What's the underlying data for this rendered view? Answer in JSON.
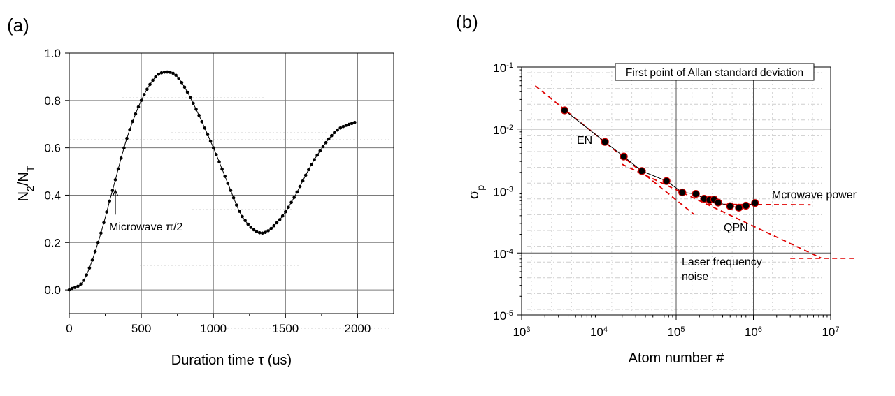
{
  "panel_a": {
    "label": "(a)"
  },
  "panel_b": {
    "label": "(b)"
  },
  "chart_data": [
    {
      "type": "scatter",
      "panel": "(a)",
      "title": "",
      "xlabel": "Duration time τ (us)",
      "ylabel": "N2/NT",
      "xlim": [
        0,
        2250
      ],
      "ylim": [
        -0.1,
        1.0
      ],
      "xticks": [
        0,
        500,
        1000,
        1500,
        2000
      ],
      "yticks": [
        0.0,
        0.2,
        0.4,
        0.6,
        0.8,
        1.0
      ],
      "xtick_labels": [
        "0",
        "500",
        "1000",
        "1500",
        "2000"
      ],
      "ytick_labels": [
        "0.0",
        "0.2",
        "0.4",
        "0.6",
        "0.8",
        "1.0"
      ],
      "grid": true,
      "marker_color": "#000000",
      "series": [
        {
          "points": [
            {
              "x": 0,
              "y": 0.0
            },
            {
              "x": 100,
              "y": 0.04
            },
            {
              "x": 200,
              "y": 0.2
            },
            {
              "x": 300,
              "y": 0.42
            },
            {
              "x": 400,
              "y": 0.64
            },
            {
              "x": 500,
              "y": 0.8
            },
            {
              "x": 600,
              "y": 0.9
            },
            {
              "x": 680,
              "y": 0.92
            },
            {
              "x": 750,
              "y": 0.9
            },
            {
              "x": 850,
              "y": 0.8
            },
            {
              "x": 1000,
              "y": 0.6
            },
            {
              "x": 1100,
              "y": 0.45
            },
            {
              "x": 1200,
              "y": 0.31
            },
            {
              "x": 1330,
              "y": 0.24
            },
            {
              "x": 1450,
              "y": 0.29
            },
            {
              "x": 1550,
              "y": 0.38
            },
            {
              "x": 1700,
              "y": 0.55
            },
            {
              "x": 1850,
              "y": 0.67
            },
            {
              "x": 1990,
              "y": 0.71
            }
          ]
        }
      ],
      "annotations": [
        {
          "text": "Microwave  π/2",
          "x": 320,
          "y": 0.43
        }
      ]
    },
    {
      "type": "scatter",
      "panel": "(b)",
      "title": "First point of Allan standard deviation",
      "xlabel": "Atom number #",
      "ylabel": "σp",
      "xscale": "log",
      "yscale": "log",
      "xlim": [
        1000,
        10000000
      ],
      "ylim": [
        1e-05,
        0.1
      ],
      "xtick_labels": [
        {
          "base": "10",
          "exp": "3"
        },
        {
          "base": "10",
          "exp": "4"
        },
        {
          "base": "10",
          "exp": "5"
        },
        {
          "base": "10",
          "exp": "6"
        },
        {
          "base": "10",
          "exp": "7"
        }
      ],
      "ytick_labels": [
        {
          "base": "10",
          "exp": "-5"
        },
        {
          "base": "10",
          "exp": "-4"
        },
        {
          "base": "10",
          "exp": "-3"
        },
        {
          "base": "10",
          "exp": "-2"
        },
        {
          "base": "10",
          "exp": "-1"
        }
      ],
      "grid": true,
      "marker_color": "#000000",
      "marker_edge_color": "#cc0000",
      "fit_color": "#e00000",
      "series": [
        {
          "points": [
            {
              "x": 3600,
              "y": 0.02
            },
            {
              "x": 12000,
              "y": 0.0062
            },
            {
              "x": 21000,
              "y": 0.0036
            },
            {
              "x": 36000,
              "y": 0.0021
            },
            {
              "x": 75000,
              "y": 0.00145
            },
            {
              "x": 120000,
              "y": 0.00095
            },
            {
              "x": 180000,
              "y": 0.0009
            },
            {
              "x": 230000,
              "y": 0.00075
            },
            {
              "x": 270000,
              "y": 0.00072
            },
            {
              "x": 310000,
              "y": 0.00073
            },
            {
              "x": 350000,
              "y": 0.00065
            },
            {
              "x": 500000,
              "y": 0.00057
            },
            {
              "x": 650000,
              "y": 0.00054
            },
            {
              "x": 800000,
              "y": 0.00058
            },
            {
              "x": 1050000,
              "y": 0.00064
            }
          ]
        }
      ],
      "fit_lines": [
        {
          "points": [
            {
              "x": 1500,
              "y": 0.05
            },
            {
              "x": 170000,
              "y": 0.00042
            }
          ]
        },
        {
          "points": [
            {
              "x": 20000,
              "y": 0.0027
            },
            {
              "x": 7500000,
              "y": 8.3e-05
            }
          ]
        },
        {
          "points": [
            {
              "x": 250000,
              "y": 0.00061
            },
            {
              "x": 5500000,
              "y": 0.0006
            }
          ]
        },
        {
          "points": [
            {
              "x": 3000000,
              "y": 8.2e-05
            },
            {
              "x": 20000000,
              "y": 8.2e-05
            }
          ]
        }
      ],
      "annotations": [
        {
          "text": "EN",
          "x": 6500,
          "y": 0.0068
        },
        {
          "text": "Mcrowave power",
          "x": 1900000,
          "y": 0.0009
        },
        {
          "text": "QPN",
          "x": 430000,
          "y": 0.00037
        },
        {
          "text": "Laser frequency",
          "x": 60000,
          "y": 8.5e-05
        },
        {
          "text": "noise",
          "x": 60000,
          "y": 4.9e-05
        }
      ]
    }
  ]
}
